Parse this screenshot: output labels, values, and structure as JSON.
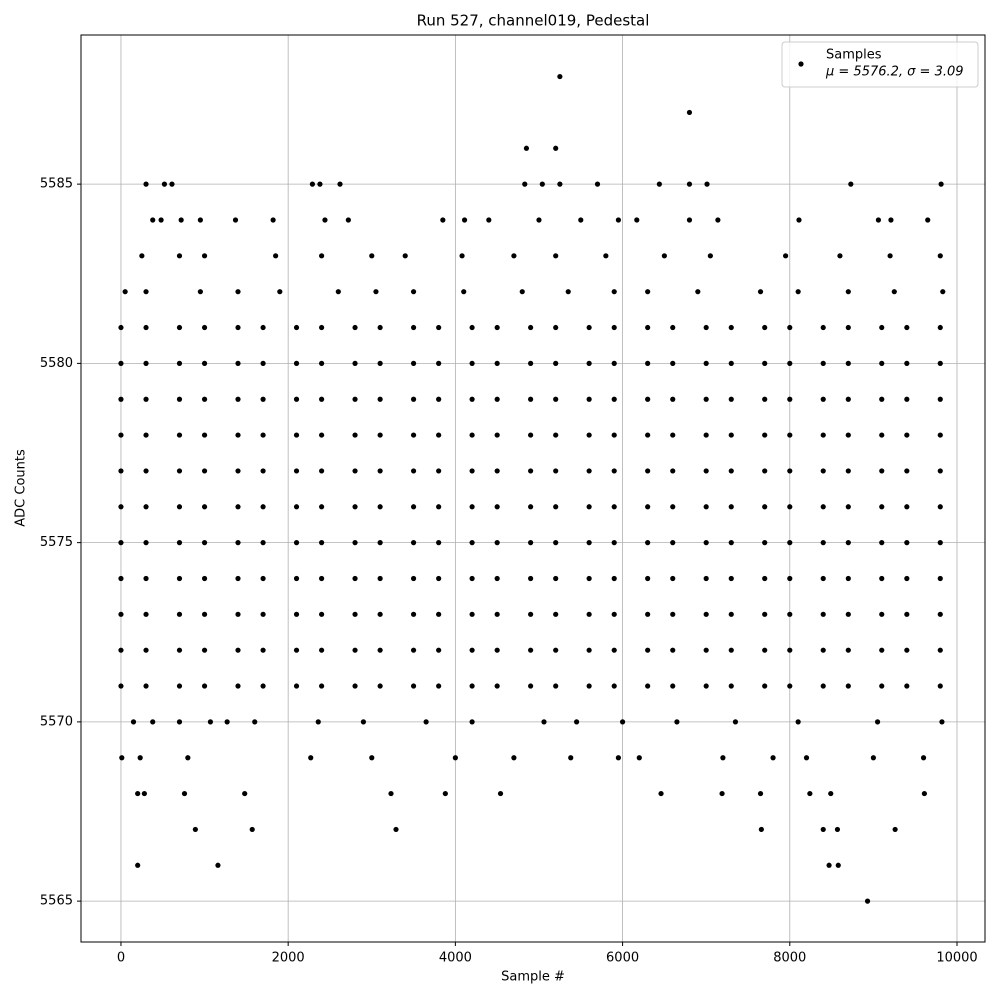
{
  "chart_data": {
    "type": "scatter",
    "title": "Run 527, channel019, Pedestal",
    "x_label": "Sample #",
    "y_label": "ADC Counts",
    "xlim": [
      -478,
      10335
    ],
    "ylim": [
      5563.86,
      5589.16
    ],
    "xticks": [
      0,
      2000,
      4000,
      6000,
      8000,
      10000
    ],
    "yticks": [
      5565,
      5570,
      5575,
      5580,
      5585
    ],
    "grid": true,
    "legend_position": "upper right",
    "legend_stats": "μ = 5576.2, σ = 3.09",
    "series": [
      {
        "name": "Samples",
        "color": "#000000",
        "x": [
          0,
          700,
          1400,
          2100,
          2800,
          3500,
          4200,
          4900,
          5600,
          6300,
          7000,
          7700,
          8400,
          9100,
          9800,
          300,
          1000,
          1700,
          2400,
          3100,
          3800,
          4500,
          5200,
          5900,
          6600,
          7300,
          8000,
          8700,
          9400,
          0,
          700,
          1400,
          2100,
          2800,
          3500,
          4200,
          4900,
          5600,
          6300,
          7000,
          7700,
          8400,
          9100,
          9800,
          300,
          1000,
          1700,
          2400,
          3100,
          3800,
          4500,
          5200,
          5900,
          6600,
          7300,
          8000,
          8700,
          9400,
          0,
          700,
          1400,
          2100,
          2800,
          3500,
          4200,
          4900,
          5600,
          6300,
          7000,
          7700,
          8400,
          9100,
          9800,
          300,
          1000,
          1700,
          2400,
          3100,
          3800,
          4500,
          5200,
          5900,
          6600,
          7300,
          8000,
          8700,
          9400,
          0,
          700,
          1400,
          2100,
          2800,
          3500,
          4200,
          4900,
          5600,
          6300,
          7000,
          7700,
          8400,
          9100,
          9800,
          300,
          1000,
          1700,
          2400,
          3100,
          3800,
          4500,
          5200,
          5900,
          6600,
          7300,
          8000,
          8700,
          9400,
          0,
          700,
          1400,
          2100,
          2800,
          3500,
          4200,
          4900,
          5600,
          6300,
          7000,
          7700,
          8400,
          9100,
          9800,
          300,
          1000,
          1700,
          2400,
          3100,
          3800,
          4500,
          5200,
          5900,
          6600,
          7300,
          8000,
          8700,
          9400,
          0,
          700,
          1400,
          2100,
          2800,
          3500,
          4200,
          4900,
          5600,
          6300,
          7000,
          7700,
          8400,
          9100,
          9800,
          300,
          1000,
          1700,
          2400,
          3100,
          3800,
          4500,
          5200,
          5900,
          6600,
          7300,
          8000,
          8700,
          9400,
          0,
          700,
          1400,
          2100,
          2800,
          3500,
          4200,
          4900,
          5600,
          6300,
          7000,
          7700,
          8400,
          9100,
          9800,
          300,
          1000,
          1700,
          2400,
          3100,
          3800,
          4500,
          5200,
          5900,
          6600,
          7300,
          8000,
          8700,
          9400,
          0,
          700,
          1400,
          2100,
          2800,
          3500,
          4200,
          4900,
          5600,
          6300,
          7000,
          7700,
          8400,
          9100,
          9800,
          300,
          1000,
          1700,
          2400,
          3100,
          3800,
          4500,
          5200,
          5900,
          6600,
          7300,
          8000,
          8700,
          9400,
          0,
          700,
          1400,
          2100,
          2800,
          3500,
          4200,
          4900,
          5600,
          6300,
          7000,
          7700,
          8400,
          9100,
          9800,
          300,
          1000,
          1700,
          2400,
          3100,
          3800,
          4500,
          5200,
          5900,
          6600,
          7300,
          8000,
          8700,
          9400,
          0,
          700,
          1400,
          2100,
          2800,
          3500,
          4200,
          4900,
          5600,
          6300,
          7000,
          7700,
          8400,
          9100,
          9800,
          300,
          1000,
          1700,
          2400,
          3100,
          3800,
          4500,
          5200,
          5900,
          6600,
          7300,
          8000,
          8700,
          9400,
          0,
          700,
          1400,
          2100,
          2800,
          3500,
          4200,
          4900,
          5600,
          6300,
          7000,
          7700,
          8400,
          9100,
          9800,
          300,
          1000,
          1700,
          2400,
          3100,
          3800,
          4500,
          5200,
          5900,
          6600,
          7300,
          8000,
          8700,
          9400,
          4850,
          5250,
          5200,
          6800,
          300,
          520,
          610,
          2290,
          2380,
          2620,
          4830,
          5040,
          5250,
          5700,
          6440,
          6800,
          7010,
          8730,
          9810,
          380,
          480,
          720,
          950,
          1370,
          1820,
          2440,
          2720,
          3850,
          4110,
          4400,
          5000,
          5500,
          5950,
          6170,
          6800,
          7140,
          8110,
          9060,
          9210,
          9650,
          250,
          700,
          1000,
          1850,
          2400,
          3000,
          3400,
          4080,
          4700,
          5200,
          5800,
          6500,
          7050,
          7950,
          8600,
          9200,
          9800,
          50,
          300,
          950,
          1400,
          1900,
          2600,
          3050,
          3500,
          4100,
          4800,
          5350,
          5900,
          6300,
          6900,
          7650,
          8100,
          8700,
          9250,
          9830,
          150,
          380,
          700,
          1070,
          1270,
          1600,
          2360,
          2900,
          3650,
          4200,
          5060,
          5450,
          6000,
          6650,
          7350,
          8100,
          9050,
          9820,
          10,
          230,
          800,
          2270,
          3000,
          4000,
          4700,
          5380,
          5950,
          6200,
          7200,
          7800,
          8200,
          9000,
          9600,
          200,
          280,
          760,
          1480,
          3230,
          3880,
          4540,
          6460,
          7190,
          7650,
          8240,
          8490,
          9610,
          890,
          1570,
          3290,
          7660,
          8400,
          8570,
          9260,
          200,
          1160,
          8470,
          8580,
          8930
        ],
        "values": [
          5581,
          5581,
          5581,
          5581,
          5581,
          5581,
          5581,
          5581,
          5581,
          5581,
          5581,
          5581,
          5581,
          5581,
          5581,
          5580,
          5580,
          5580,
          5580,
          5580,
          5580,
          5580,
          5580,
          5580,
          5580,
          5580,
          5580,
          5580,
          5580,
          5580,
          5580,
          5580,
          5580,
          5580,
          5580,
          5580,
          5580,
          5580,
          5580,
          5580,
          5580,
          5580,
          5580,
          5580,
          5579,
          5579,
          5579,
          5579,
          5579,
          5579,
          5579,
          5579,
          5579,
          5579,
          5579,
          5579,
          5579,
          5579,
          5579,
          5579,
          5579,
          5579,
          5579,
          5579,
          5579,
          5579,
          5579,
          5579,
          5579,
          5579,
          5579,
          5579,
          5579,
          5578,
          5578,
          5578,
          5578,
          5578,
          5578,
          5578,
          5578,
          5578,
          5578,
          5578,
          5578,
          5578,
          5578,
          5578,
          5578,
          5578,
          5578,
          5578,
          5578,
          5578,
          5578,
          5578,
          5578,
          5578,
          5578,
          5578,
          5578,
          5578,
          5577,
          5577,
          5577,
          5577,
          5577,
          5577,
          5577,
          5577,
          5577,
          5577,
          5577,
          5577,
          5577,
          5577,
          5577,
          5577,
          5577,
          5577,
          5577,
          5577,
          5577,
          5577,
          5577,
          5577,
          5577,
          5577,
          5577,
          5577,
          5577,
          5576,
          5576,
          5576,
          5576,
          5576,
          5576,
          5576,
          5576,
          5576,
          5576,
          5576,
          5576,
          5576,
          5576,
          5576,
          5576,
          5576,
          5576,
          5576,
          5576,
          5576,
          5576,
          5576,
          5576,
          5576,
          5576,
          5576,
          5576,
          5576,
          5575,
          5575,
          5575,
          5575,
          5575,
          5575,
          5575,
          5575,
          5575,
          5575,
          5575,
          5575,
          5575,
          5575,
          5575,
          5575,
          5575,
          5575,
          5575,
          5575,
          5575,
          5575,
          5575,
          5575,
          5575,
          5575,
          5575,
          5575,
          5575,
          5574,
          5574,
          5574,
          5574,
          5574,
          5574,
          5574,
          5574,
          5574,
          5574,
          5574,
          5574,
          5574,
          5574,
          5574,
          5574,
          5574,
          5574,
          5574,
          5574,
          5574,
          5574,
          5574,
          5574,
          5574,
          5574,
          5574,
          5574,
          5574,
          5573,
          5573,
          5573,
          5573,
          5573,
          5573,
          5573,
          5573,
          5573,
          5573,
          5573,
          5573,
          5573,
          5573,
          5573,
          5573,
          5573,
          5573,
          5573,
          5573,
          5573,
          5573,
          5573,
          5573,
          5573,
          5573,
          5573,
          5573,
          5573,
          5572,
          5572,
          5572,
          5572,
          5572,
          5572,
          5572,
          5572,
          5572,
          5572,
          5572,
          5572,
          5572,
          5572,
          5572,
          5572,
          5572,
          5572,
          5572,
          5572,
          5572,
          5572,
          5572,
          5572,
          5572,
          5572,
          5572,
          5572,
          5572,
          5571,
          5571,
          5571,
          5571,
          5571,
          5571,
          5571,
          5571,
          5571,
          5571,
          5571,
          5571,
          5571,
          5571,
          5571,
          5571,
          5571,
          5571,
          5571,
          5571,
          5571,
          5571,
          5571,
          5571,
          5571,
          5571,
          5571,
          5571,
          5571,
          5581,
          5581,
          5581,
          5581,
          5581,
          5581,
          5581,
          5581,
          5581,
          5581,
          5581,
          5581,
          5581,
          5581,
          5586,
          5588,
          5586,
          5587,
          5585,
          5585,
          5585,
          5585,
          5585,
          5585,
          5585,
          5585,
          5585,
          5585,
          5585,
          5585,
          5585,
          5585,
          5585,
          5584,
          5584,
          5584,
          5584,
          5584,
          5584,
          5584,
          5584,
          5584,
          5584,
          5584,
          5584,
          5584,
          5584,
          5584,
          5584,
          5584,
          5584,
          5584,
          5584,
          5584,
          5583,
          5583,
          5583,
          5583,
          5583,
          5583,
          5583,
          5583,
          5583,
          5583,
          5583,
          5583,
          5583,
          5583,
          5583,
          5583,
          5583,
          5582,
          5582,
          5582,
          5582,
          5582,
          5582,
          5582,
          5582,
          5582,
          5582,
          5582,
          5582,
          5582,
          5582,
          5582,
          5582,
          5582,
          5582,
          5582,
          5570,
          5570,
          5570,
          5570,
          5570,
          5570,
          5570,
          5570,
          5570,
          5570,
          5570,
          5570,
          5570,
          5570,
          5570,
          5570,
          5570,
          5570,
          5569,
          5569,
          5569,
          5569,
          5569,
          5569,
          5569,
          5569,
          5569,
          5569,
          5569,
          5569,
          5569,
          5569,
          5569,
          5568,
          5568,
          5568,
          5568,
          5568,
          5568,
          5568,
          5568,
          5568,
          5568,
          5568,
          5568,
          5568,
          5567,
          5567,
          5567,
          5567,
          5567,
          5567,
          5567,
          5566,
          5566,
          5566,
          5566,
          5565
        ]
      }
    ]
  }
}
